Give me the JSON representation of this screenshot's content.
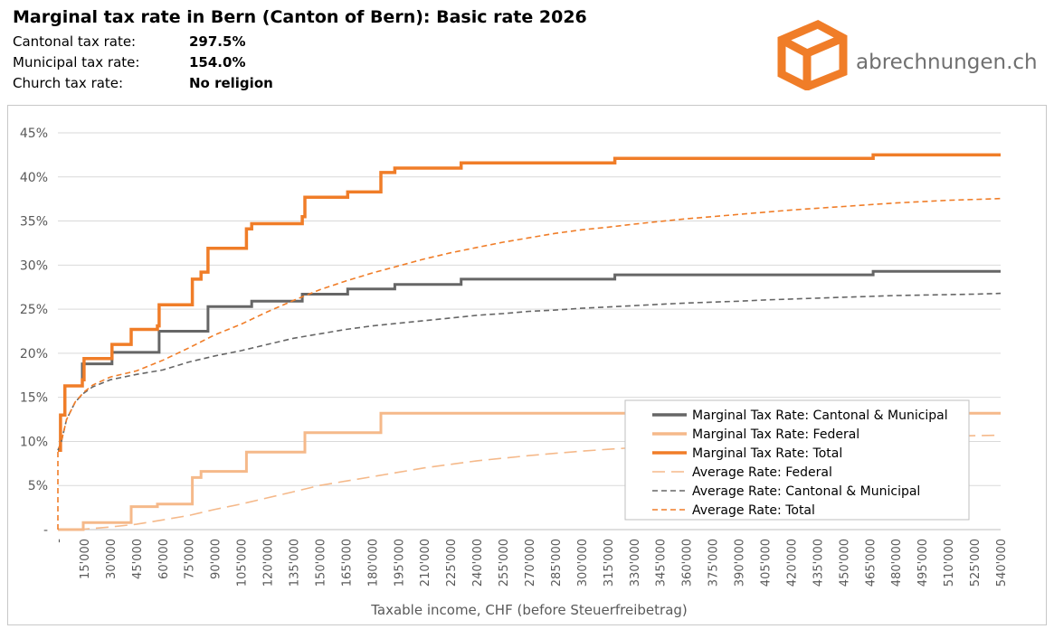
{
  "header": {
    "title": "Marginal tax rate in Bern (Canton of Bern): Basic rate 2026",
    "rows": [
      {
        "label": "Cantonal tax rate:",
        "value": "297.5%"
      },
      {
        "label": "Municipal tax rate:",
        "value": "154.0%"
      },
      {
        "label": "Church tax rate:",
        "value": "No religion"
      }
    ]
  },
  "logo": {
    "text": "abrechnungen.ch",
    "icon": "box-icon",
    "color": "#F07D28"
  },
  "colors": {
    "dark_gray": "#666666",
    "light_orange": "#F5B98A",
    "orange": "#F07D28",
    "grid": "#d9d9d9"
  },
  "chart_data": {
    "type": "line",
    "xlabel": "Taxable income, CHF (before Steuerfreibetrag)",
    "xlim": [
      0,
      540000
    ],
    "ylim": [
      0,
      45
    ],
    "y_ticks": [
      {
        "value": 0,
        "label": "-"
      },
      {
        "value": 5,
        "label": "5%"
      },
      {
        "value": 10,
        "label": "10%"
      },
      {
        "value": 15,
        "label": "15%"
      },
      {
        "value": 20,
        "label": "20%"
      },
      {
        "value": 25,
        "label": "25%"
      },
      {
        "value": 30,
        "label": "30%"
      },
      {
        "value": 35,
        "label": "35%"
      },
      {
        "value": 40,
        "label": "40%"
      },
      {
        "value": 45,
        "label": "45%"
      }
    ],
    "x_ticks": [
      {
        "value": 0,
        "label": "-"
      },
      {
        "value": 15000,
        "label": "15'000"
      },
      {
        "value": 30000,
        "label": "30'000"
      },
      {
        "value": 45000,
        "label": "45'000"
      },
      {
        "value": 60000,
        "label": "60'000"
      },
      {
        "value": 75000,
        "label": "75'000"
      },
      {
        "value": 90000,
        "label": "90'000"
      },
      {
        "value": 105000,
        "label": "105'000"
      },
      {
        "value": 120000,
        "label": "120'000"
      },
      {
        "value": 135000,
        "label": "135'000"
      },
      {
        "value": 150000,
        "label": "150'000"
      },
      {
        "value": 165000,
        "label": "165'000"
      },
      {
        "value": 180000,
        "label": "180'000"
      },
      {
        "value": 195000,
        "label": "195'000"
      },
      {
        "value": 210000,
        "label": "210'000"
      },
      {
        "value": 225000,
        "label": "225'000"
      },
      {
        "value": 240000,
        "label": "240'000"
      },
      {
        "value": 255000,
        "label": "255'000"
      },
      {
        "value": 270000,
        "label": "270'000"
      },
      {
        "value": 285000,
        "label": "285'000"
      },
      {
        "value": 300000,
        "label": "300'000"
      },
      {
        "value": 315000,
        "label": "315'000"
      },
      {
        "value": 330000,
        "label": "330'000"
      },
      {
        "value": 345000,
        "label": "345'000"
      },
      {
        "value": 360000,
        "label": "360'000"
      },
      {
        "value": 375000,
        "label": "375'000"
      },
      {
        "value": 390000,
        "label": "390'000"
      },
      {
        "value": 405000,
        "label": "405'000"
      },
      {
        "value": 420000,
        "label": "420'000"
      },
      {
        "value": 435000,
        "label": "435'000"
      },
      {
        "value": 450000,
        "label": "450'000"
      },
      {
        "value": 465000,
        "label": "465'000"
      },
      {
        "value": 480000,
        "label": "480'000"
      },
      {
        "value": 495000,
        "label": "495'000"
      },
      {
        "value": 510000,
        "label": "510'000"
      },
      {
        "value": 525000,
        "label": "525'000"
      },
      {
        "value": 540000,
        "label": "540'000"
      }
    ],
    "grid": true,
    "legend_position": "bottom-right",
    "series": [
      {
        "name": "Marginal Tax Rate: Cantonal & Municipal",
        "style": "solid",
        "weight": "normal",
        "color": "#666666",
        "points": [
          [
            0,
            9
          ],
          [
            1500,
            9
          ],
          [
            1500,
            13
          ],
          [
            4000,
            13
          ],
          [
            4000,
            16.3
          ],
          [
            14000,
            16.3
          ],
          [
            14000,
            18.8
          ],
          [
            31000,
            18.8
          ],
          [
            31000,
            20.1
          ],
          [
            58000,
            20.1
          ],
          [
            58000,
            22.5
          ],
          [
            86000,
            22.5
          ],
          [
            86000,
            25.3
          ],
          [
            111000,
            25.3
          ],
          [
            111000,
            25.9
          ],
          [
            140000,
            25.9
          ],
          [
            140000,
            26.7
          ],
          [
            166000,
            26.7
          ],
          [
            166000,
            27.3
          ],
          [
            193000,
            27.3
          ],
          [
            193000,
            27.8
          ],
          [
            231000,
            27.8
          ],
          [
            231000,
            28.4
          ],
          [
            319000,
            28.4
          ],
          [
            319000,
            28.9
          ],
          [
            467000,
            28.9
          ],
          [
            467000,
            29.3
          ],
          [
            540000,
            29.3
          ]
        ]
      },
      {
        "name": "Marginal Tax Rate: Federal",
        "style": "solid",
        "weight": "normal",
        "color": "#F5B98A",
        "points": [
          [
            0,
            0
          ],
          [
            14500,
            0
          ],
          [
            14500,
            0.8
          ],
          [
            42000,
            0.8
          ],
          [
            42000,
            2.6
          ],
          [
            57000,
            2.6
          ],
          [
            57000,
            2.9
          ],
          [
            77000,
            2.9
          ],
          [
            77000,
            5.9
          ],
          [
            82000,
            5.9
          ],
          [
            82000,
            6.6
          ],
          [
            108000,
            6.6
          ],
          [
            108000,
            8.8
          ],
          [
            141500,
            8.8
          ],
          [
            141500,
            11
          ],
          [
            185000,
            11
          ],
          [
            185000,
            13.2
          ],
          [
            540000,
            13.2
          ]
        ]
      },
      {
        "name": "Marginal Tax Rate: Total",
        "style": "solid",
        "weight": "bold",
        "color": "#F07D28",
        "points": [
          [
            0,
            9
          ],
          [
            1500,
            9
          ],
          [
            1500,
            13
          ],
          [
            4000,
            13
          ],
          [
            4000,
            16.3
          ],
          [
            14000,
            16.3
          ],
          [
            14000,
            17
          ],
          [
            15000,
            17
          ],
          [
            15000,
            19.4
          ],
          [
            31000,
            19.4
          ],
          [
            31000,
            21
          ],
          [
            42000,
            21
          ],
          [
            42000,
            22.7
          ],
          [
            57000,
            22.7
          ],
          [
            57000,
            23.1
          ],
          [
            58000,
            23.1
          ],
          [
            58000,
            25.5
          ],
          [
            77000,
            25.5
          ],
          [
            77000,
            28.4
          ],
          [
            82000,
            28.4
          ],
          [
            82000,
            29.2
          ],
          [
            86000,
            29.2
          ],
          [
            86000,
            31.9
          ],
          [
            108000,
            31.9
          ],
          [
            108000,
            34.1
          ],
          [
            111000,
            34.1
          ],
          [
            111000,
            34.7
          ],
          [
            140000,
            34.7
          ],
          [
            140000,
            35.5
          ],
          [
            141500,
            35.5
          ],
          [
            141500,
            37.7
          ],
          [
            166000,
            37.7
          ],
          [
            166000,
            38.3
          ],
          [
            185000,
            38.3
          ],
          [
            185000,
            40.5
          ],
          [
            193000,
            40.5
          ],
          [
            193000,
            41
          ],
          [
            231000,
            41
          ],
          [
            231000,
            41.6
          ],
          [
            319000,
            41.6
          ],
          [
            319000,
            42.1
          ],
          [
            467000,
            42.1
          ],
          [
            467000,
            42.5
          ],
          [
            540000,
            42.5
          ]
        ]
      },
      {
        "name": "Average Rate: Federal",
        "style": "longdash",
        "weight": "normal",
        "color": "#F5B98A",
        "points": [
          [
            0,
            0
          ],
          [
            15000,
            0.05
          ],
          [
            30000,
            0.3
          ],
          [
            45000,
            0.6
          ],
          [
            60000,
            1.1
          ],
          [
            75000,
            1.6
          ],
          [
            90000,
            2.3
          ],
          [
            105000,
            2.9
          ],
          [
            120000,
            3.6
          ],
          [
            135000,
            4.3
          ],
          [
            150000,
            5
          ],
          [
            165000,
            5.5
          ],
          [
            180000,
            6
          ],
          [
            195000,
            6.5
          ],
          [
            210000,
            7
          ],
          [
            225000,
            7.4
          ],
          [
            240000,
            7.8
          ],
          [
            255000,
            8.1
          ],
          [
            270000,
            8.4
          ],
          [
            285000,
            8.65
          ],
          [
            300000,
            8.9
          ],
          [
            315000,
            9.1
          ],
          [
            330000,
            9.3
          ],
          [
            345000,
            9.45
          ],
          [
            360000,
            9.6
          ],
          [
            375000,
            9.75
          ],
          [
            390000,
            9.9
          ],
          [
            405000,
            10
          ],
          [
            420000,
            10.1
          ],
          [
            435000,
            10.2
          ],
          [
            450000,
            10.3
          ],
          [
            465000,
            10.4
          ],
          [
            480000,
            10.5
          ],
          [
            495000,
            10.55
          ],
          [
            510000,
            10.6
          ],
          [
            525000,
            10.65
          ],
          [
            540000,
            10.7
          ]
        ]
      },
      {
        "name": "Average Rate: Cantonal & Municipal",
        "style": "dash",
        "weight": "normal",
        "color": "#666666",
        "points": [
          [
            0,
            9
          ],
          [
            2000,
            10
          ],
          [
            5000,
            12.5
          ],
          [
            10000,
            14.5
          ],
          [
            15000,
            15.5
          ],
          [
            20000,
            16.2
          ],
          [
            30000,
            17
          ],
          [
            45000,
            17.6
          ],
          [
            60000,
            18.1
          ],
          [
            75000,
            19
          ],
          [
            90000,
            19.7
          ],
          [
            105000,
            20.3
          ],
          [
            120000,
            21
          ],
          [
            135000,
            21.7
          ],
          [
            150000,
            22.2
          ],
          [
            165000,
            22.7
          ],
          [
            180000,
            23.1
          ],
          [
            195000,
            23.4
          ],
          [
            210000,
            23.7
          ],
          [
            225000,
            24
          ],
          [
            240000,
            24.3
          ],
          [
            255000,
            24.5
          ],
          [
            270000,
            24.75
          ],
          [
            285000,
            24.9
          ],
          [
            300000,
            25.1
          ],
          [
            315000,
            25.25
          ],
          [
            330000,
            25.4
          ],
          [
            345000,
            25.55
          ],
          [
            360000,
            25.7
          ],
          [
            375000,
            25.8
          ],
          [
            390000,
            25.9
          ],
          [
            405000,
            26.05
          ],
          [
            420000,
            26.15
          ],
          [
            435000,
            26.25
          ],
          [
            450000,
            26.35
          ],
          [
            465000,
            26.45
          ],
          [
            480000,
            26.55
          ],
          [
            495000,
            26.6
          ],
          [
            510000,
            26.65
          ],
          [
            525000,
            26.7
          ],
          [
            540000,
            26.8
          ]
        ]
      },
      {
        "name": "Average Rate: Total",
        "style": "dash",
        "weight": "normal",
        "color": "#F07D28",
        "points": [
          [
            0,
            0
          ],
          [
            0,
            9
          ],
          [
            2000,
            10
          ],
          [
            5000,
            12.5
          ],
          [
            10000,
            14.5
          ],
          [
            15000,
            15.6
          ],
          [
            20000,
            16.4
          ],
          [
            30000,
            17.3
          ],
          [
            45000,
            18
          ],
          [
            60000,
            19.2
          ],
          [
            75000,
            20.6
          ],
          [
            90000,
            22.1
          ],
          [
            105000,
            23.3
          ],
          [
            120000,
            24.7
          ],
          [
            135000,
            26
          ],
          [
            150000,
            27.2
          ],
          [
            165000,
            28.2
          ],
          [
            180000,
            29.1
          ],
          [
            195000,
            29.9
          ],
          [
            210000,
            30.7
          ],
          [
            225000,
            31.4
          ],
          [
            240000,
            32
          ],
          [
            255000,
            32.6
          ],
          [
            270000,
            33.1
          ],
          [
            285000,
            33.6
          ],
          [
            300000,
            34
          ],
          [
            315000,
            34.3
          ],
          [
            330000,
            34.65
          ],
          [
            345000,
            34.95
          ],
          [
            360000,
            35.25
          ],
          [
            375000,
            35.5
          ],
          [
            390000,
            35.75
          ],
          [
            405000,
            36
          ],
          [
            420000,
            36.25
          ],
          [
            435000,
            36.45
          ],
          [
            450000,
            36.65
          ],
          [
            465000,
            36.85
          ],
          [
            480000,
            37.05
          ],
          [
            495000,
            37.2
          ],
          [
            510000,
            37.35
          ],
          [
            525000,
            37.45
          ],
          [
            540000,
            37.55
          ]
        ]
      }
    ]
  }
}
